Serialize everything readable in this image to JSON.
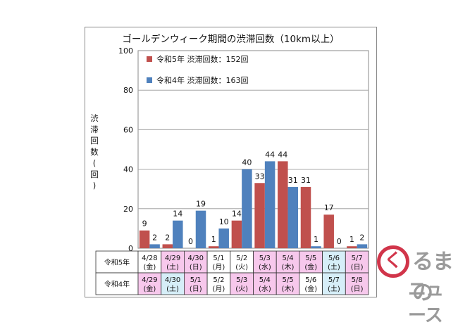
{
  "chart_data": {
    "type": "bar",
    "title": "ゴールデンウィーク期間の渋滞回数（10km以上）",
    "ylabel": "渋滞回数(回)",
    "ylim": [
      0,
      100
    ],
    "yticks": [
      "0",
      "20",
      "40",
      "60",
      "80",
      "100"
    ],
    "grid": "horizontal",
    "legend_position": "top-left",
    "series": [
      {
        "name": "令和5年 渋滞回数：152回",
        "row_label": "令和5年",
        "color": "#c0504d",
        "values": [
          9,
          2,
          0,
          1,
          14,
          33,
          44,
          31,
          17,
          1
        ],
        "value_labels": [
          "9",
          "2",
          "0",
          "1",
          "14",
          "33",
          "44",
          "31",
          "17",
          "1"
        ],
        "dates": [
          "4/28",
          "4/29",
          "4/30",
          "5/1",
          "5/2",
          "5/3",
          "5/4",
          "5/5",
          "5/6",
          "5/7"
        ],
        "weekdays": [
          "(金)",
          "(土)",
          "(日)",
          "(月)",
          "(火)",
          "(水)",
          "(木)",
          "(金)",
          "(土)",
          "(日)"
        ],
        "cell_colors": [
          "#ffffff",
          "#f7c8ec",
          "#f7c8ec",
          "#ffffff",
          "#ffffff",
          "#f7c8ec",
          "#f7c8ec",
          "#f7c8ec",
          "#d6eef8",
          "#f7c8ec"
        ]
      },
      {
        "name": "令和4年 渋滞回数：163回",
        "row_label": "令和4年",
        "color": "#4f81bd",
        "values": [
          2,
          14,
          19,
          10,
          40,
          44,
          31,
          1,
          0,
          2
        ],
        "value_labels": [
          "2",
          "14",
          "19",
          "10",
          "40",
          "44",
          "31",
          "1",
          "0",
          "2"
        ],
        "dates": [
          "4/29",
          "4/30",
          "5/1",
          "5/2",
          "5/3",
          "5/4",
          "5/5",
          "5/6",
          "5/7",
          "5/8"
        ],
        "weekdays": [
          "(金)",
          "(土)",
          "(日)",
          "(月)",
          "(火)",
          "(水)",
          "(木)",
          "(金)",
          "(土)",
          "(日)"
        ],
        "cell_colors": [
          "#f7c8ec",
          "#d6eef8",
          "#f7c8ec",
          "#ffffff",
          "#f7c8ec",
          "#f7c8ec",
          "#f7c8ec",
          "#ffffff",
          "#d6eef8",
          "#f7c8ec"
        ]
      }
    ]
  },
  "watermark": {
    "line1": "るまの",
    "line2": "ニュース",
    "logo_glyph": "く",
    "color": "#d1354a"
  }
}
